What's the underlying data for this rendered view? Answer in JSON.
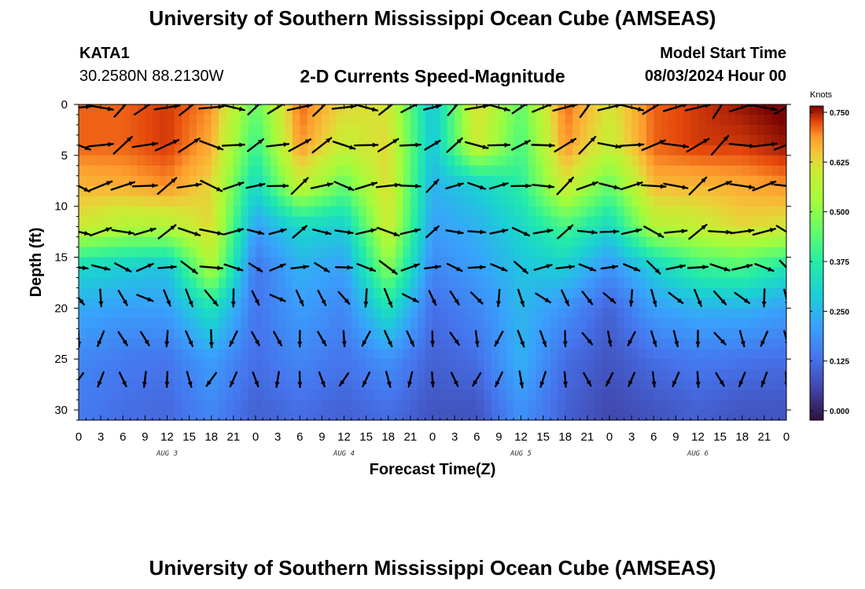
{
  "header": {
    "title": "University of Southern Mississippi Ocean Cube (AMSEAS)",
    "station_id": "KATA1",
    "station_coords": "30.2580N  88.2130W",
    "subtitle": "2-D Currents Speed-Magnitude",
    "model_start_label": "Model Start Time",
    "model_start_value": "08/03/2024 Hour 00"
  },
  "footer": {
    "title": "University of Southern Mississippi Ocean Cube (AMSEAS)"
  },
  "chart_data": {
    "type": "heatmap",
    "xlabel": "Forecast Time(Z)",
    "ylabel": "Depth (ft)",
    "x_ticks": [
      "0",
      "3",
      "6",
      "9",
      "12",
      "15",
      "18",
      "21",
      "0",
      "3",
      "6",
      "9",
      "12",
      "15",
      "18",
      "21",
      "0",
      "3",
      "6",
      "9",
      "12",
      "15",
      "18",
      "21",
      "0",
      "3",
      "6",
      "9",
      "12",
      "15",
      "18",
      "21",
      "0"
    ],
    "x_range_hours": [
      0,
      96
    ],
    "day_labels": [
      {
        "label": "AUG 3",
        "hour": 12
      },
      {
        "label": "AUG 4",
        "hour": 36
      },
      {
        "label": "AUG 5",
        "hour": 60
      },
      {
        "label": "AUG 6",
        "hour": 84
      }
    ],
    "y_ticks": [
      0,
      5,
      10,
      15,
      20,
      25,
      30
    ],
    "y_range": [
      0,
      31
    ],
    "y_inverted": true,
    "colorbar": {
      "title": "Knots",
      "ticks": [
        "0.750",
        "0.625",
        "0.500",
        "0.375",
        "0.250",
        "0.125",
        "0.000"
      ],
      "range": [
        0.0,
        0.75
      ],
      "colormap": "turbo"
    },
    "speed_columns": [
      {
        "hour": 0,
        "speeds": [
          0.7,
          0.7,
          0.65,
          0.6,
          0.32,
          0.24,
          0.18,
          0.16
        ]
      },
      {
        "hour": 6,
        "speeds": [
          0.7,
          0.7,
          0.66,
          0.55,
          0.3,
          0.22,
          0.16,
          0.14
        ]
      },
      {
        "hour": 12,
        "speeds": [
          0.72,
          0.72,
          0.68,
          0.55,
          0.28,
          0.22,
          0.15,
          0.13
        ]
      },
      {
        "hour": 18,
        "speeds": [
          0.68,
          0.66,
          0.62,
          0.62,
          0.55,
          0.35,
          0.22,
          0.18
        ]
      },
      {
        "hour": 24,
        "speeds": [
          0.45,
          0.4,
          0.32,
          0.22,
          0.15,
          0.15,
          0.14,
          0.12
        ]
      },
      {
        "hour": 30,
        "speeds": [
          0.7,
          0.68,
          0.58,
          0.32,
          0.25,
          0.22,
          0.18,
          0.14
        ]
      },
      {
        "hour": 36,
        "speeds": [
          0.62,
          0.58,
          0.45,
          0.3,
          0.22,
          0.18,
          0.15,
          0.12
        ]
      },
      {
        "hour": 42,
        "speeds": [
          0.6,
          0.62,
          0.62,
          0.6,
          0.5,
          0.35,
          0.2,
          0.14
        ]
      },
      {
        "hour": 48,
        "speeds": [
          0.28,
          0.28,
          0.25,
          0.22,
          0.18,
          0.14,
          0.12,
          0.1
        ]
      },
      {
        "hour": 54,
        "speeds": [
          0.62,
          0.6,
          0.3,
          0.25,
          0.22,
          0.18,
          0.14,
          0.1
        ]
      },
      {
        "hour": 60,
        "speeds": [
          0.45,
          0.42,
          0.38,
          0.32,
          0.28,
          0.26,
          0.25,
          0.2
        ]
      },
      {
        "hour": 66,
        "speeds": [
          0.7,
          0.68,
          0.6,
          0.42,
          0.3,
          0.2,
          0.14,
          0.12
        ]
      },
      {
        "hour": 72,
        "speeds": [
          0.6,
          0.58,
          0.45,
          0.32,
          0.2,
          0.12,
          0.1,
          0.08
        ]
      },
      {
        "hour": 78,
        "speeds": [
          0.7,
          0.7,
          0.65,
          0.55,
          0.3,
          0.22,
          0.14,
          0.1
        ]
      },
      {
        "hour": 84,
        "speeds": [
          0.72,
          0.72,
          0.65,
          0.58,
          0.4,
          0.25,
          0.16,
          0.12
        ]
      },
      {
        "hour": 90,
        "speeds": [
          0.74,
          0.72,
          0.66,
          0.62,
          0.42,
          0.25,
          0.15,
          0.1
        ]
      },
      {
        "hour": 96,
        "speeds": [
          0.76,
          0.74,
          0.68,
          0.6,
          0.35,
          0.22,
          0.14,
          0.1
        ]
      }
    ],
    "speed_depths": [
      0,
      4,
      8,
      12,
      16,
      20,
      25,
      30
    ],
    "vector_depths": [
      0,
      4,
      8,
      12.5,
      16,
      19,
      23,
      27
    ],
    "vector_hours_step": 3,
    "vector_angle_by_depth_deg": [
      -20,
      -15,
      -10,
      -5,
      10,
      60,
      80,
      95
    ]
  }
}
